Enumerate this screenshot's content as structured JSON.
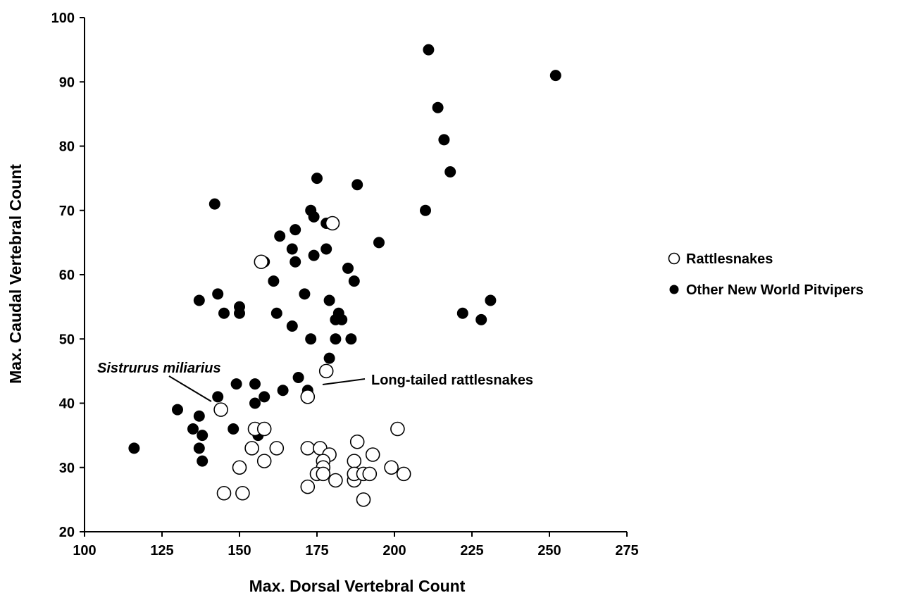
{
  "chart_data": {
    "type": "scatter",
    "xlabel": "Max. Dorsal Vertebral Count",
    "ylabel": "Max. Caudal Vertebral Count",
    "xlim": [
      100,
      275
    ],
    "ylim": [
      20,
      100
    ],
    "xticks": [
      "100",
      "125",
      "150",
      "175",
      "200",
      "225",
      "250",
      "275"
    ],
    "yticks": [
      "20",
      "30",
      "40",
      "50",
      "60",
      "70",
      "80",
      "90",
      "100"
    ],
    "grid": false,
    "legend_position": "right",
    "series": [
      {
        "name": "Rattlesnakes",
        "marker": "open-circle",
        "color": "#000000",
        "points": [
          [
            144,
            39
          ],
          [
            172,
            41
          ],
          [
            178,
            45
          ],
          [
            155,
            36
          ],
          [
            158,
            36
          ],
          [
            201,
            36
          ],
          [
            154,
            33
          ],
          [
            162,
            33
          ],
          [
            172,
            33
          ],
          [
            176,
            33
          ],
          [
            179,
            32
          ],
          [
            188,
            34
          ],
          [
            193,
            32
          ],
          [
            158,
            31
          ],
          [
            177,
            31
          ],
          [
            187,
            31
          ],
          [
            150,
            30
          ],
          [
            177,
            30
          ],
          [
            199,
            30
          ],
          [
            175,
            29
          ],
          [
            177,
            29
          ],
          [
            181,
            28
          ],
          [
            187,
            28
          ],
          [
            187,
            29
          ],
          [
            190,
            29
          ],
          [
            192,
            29
          ],
          [
            203,
            29
          ],
          [
            172,
            27
          ],
          [
            145,
            26
          ],
          [
            151,
            26
          ],
          [
            190,
            25
          ],
          [
            157,
            62
          ],
          [
            180,
            68
          ]
        ]
      },
      {
        "name": "Other New World Pitvipers",
        "marker": "filled-circle",
        "color": "#000000",
        "points": [
          [
            211,
            95
          ],
          [
            252,
            91
          ],
          [
            214,
            86
          ],
          [
            216,
            81
          ],
          [
            218,
            76
          ],
          [
            175,
            75
          ],
          [
            188,
            74
          ],
          [
            142,
            71
          ],
          [
            173,
            70
          ],
          [
            210,
            70
          ],
          [
            174,
            69
          ],
          [
            178,
            68
          ],
          [
            180,
            68
          ],
          [
            168,
            67
          ],
          [
            163,
            66
          ],
          [
            195,
            65
          ],
          [
            167,
            64
          ],
          [
            178,
            64
          ],
          [
            174,
            63
          ],
          [
            158,
            62
          ],
          [
            168,
            62
          ],
          [
            185,
            61
          ],
          [
            161,
            59
          ],
          [
            187,
            59
          ],
          [
            137,
            56
          ],
          [
            143,
            57
          ],
          [
            171,
            57
          ],
          [
            179,
            56
          ],
          [
            231,
            56
          ],
          [
            150,
            55
          ],
          [
            145,
            54
          ],
          [
            150,
            54
          ],
          [
            162,
            54
          ],
          [
            182,
            54
          ],
          [
            222,
            54
          ],
          [
            181,
            53
          ],
          [
            183,
            53
          ],
          [
            228,
            53
          ],
          [
            167,
            52
          ],
          [
            173,
            50
          ],
          [
            181,
            50
          ],
          [
            186,
            50
          ],
          [
            179,
            47
          ],
          [
            169,
            44
          ],
          [
            149,
            43
          ],
          [
            155,
            43
          ],
          [
            143,
            41
          ],
          [
            164,
            42
          ],
          [
            172,
            42
          ],
          [
            158,
            41
          ],
          [
            155,
            40
          ],
          [
            130,
            39
          ],
          [
            137,
            38
          ],
          [
            135,
            36
          ],
          [
            148,
            36
          ],
          [
            138,
            35
          ],
          [
            156,
            35
          ],
          [
            116,
            33
          ],
          [
            137,
            33
          ],
          [
            138,
            31
          ]
        ]
      }
    ],
    "annotations": [
      {
        "text": "Sistrurus miliarius",
        "style": "italic",
        "points_to": [
          144,
          39
        ]
      },
      {
        "text": "Long-tailed rattlesnakes",
        "style": "normal",
        "points_to": [
          178,
          43
        ]
      }
    ]
  }
}
